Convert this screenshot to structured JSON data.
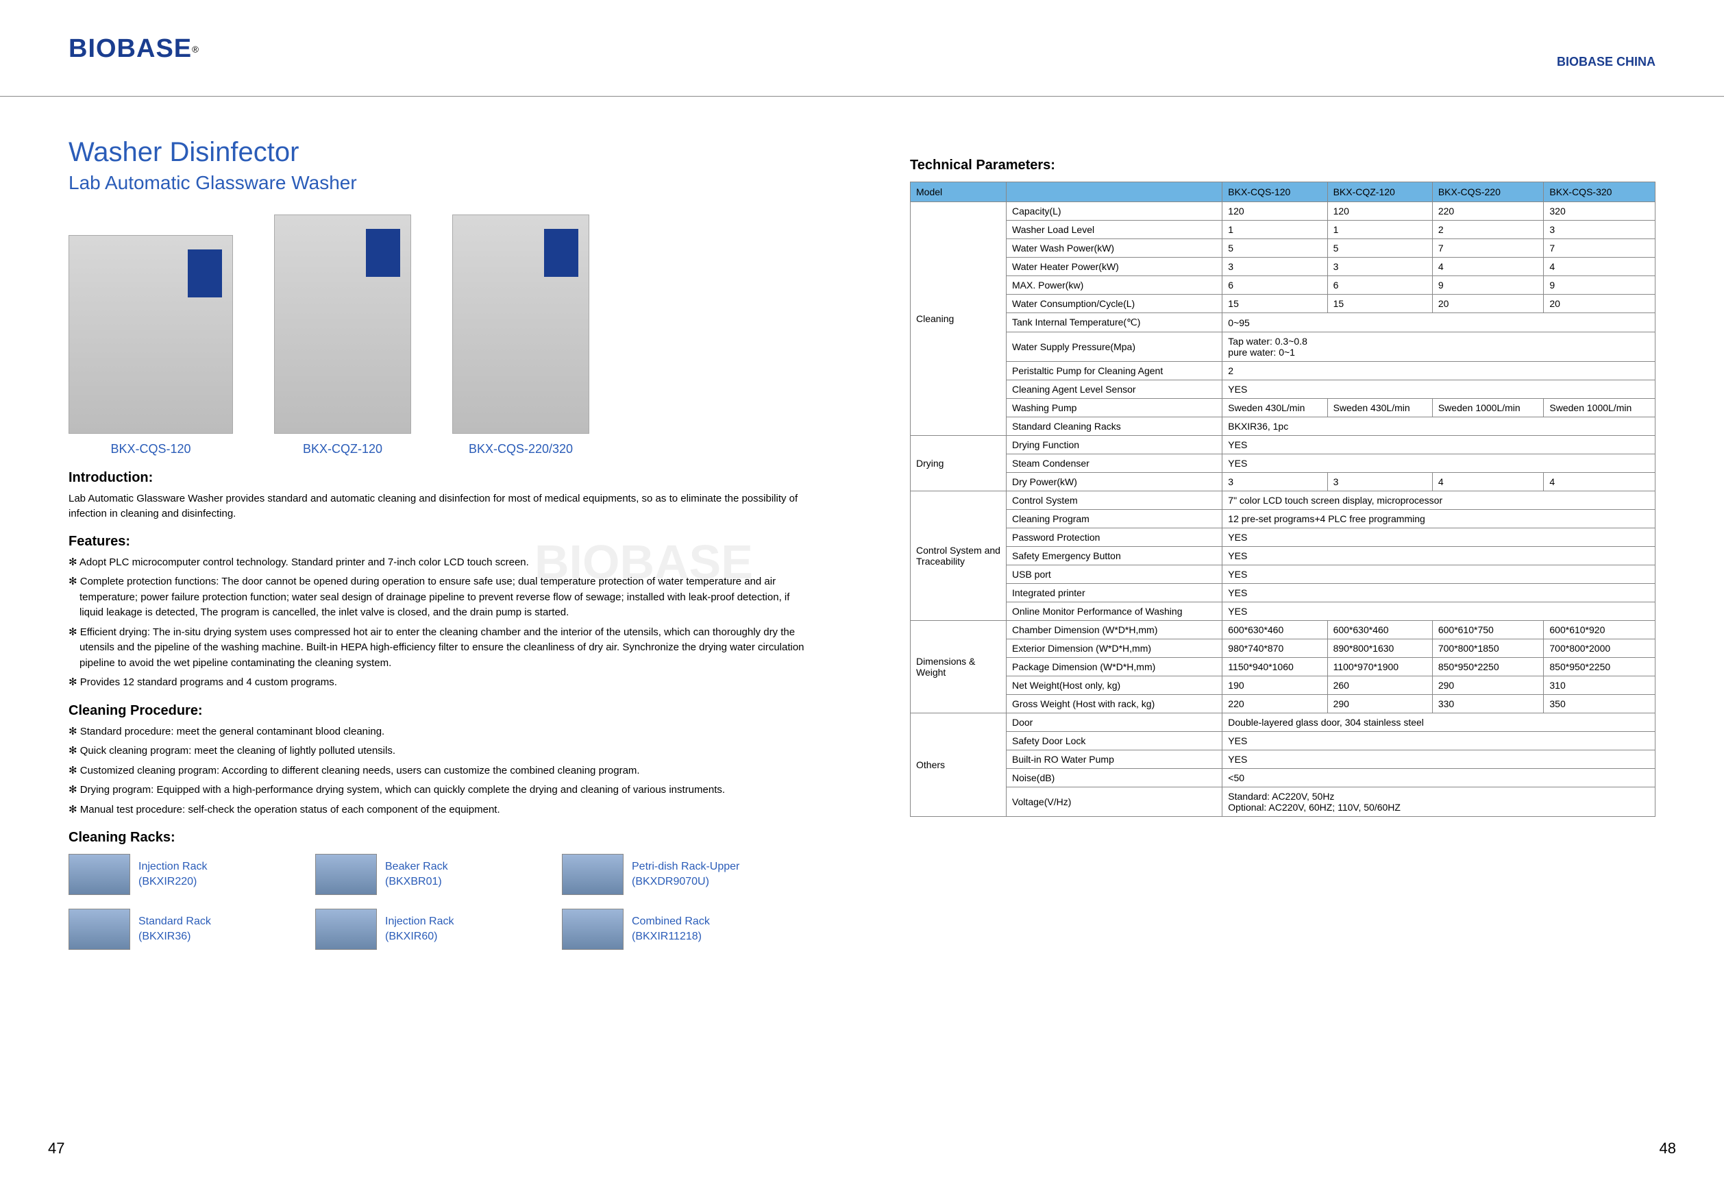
{
  "brand": "BIOBASE",
  "header_right": "BIOBASE CHINA",
  "title1": "Washer Disinfector",
  "title2": "Lab Automatic Glassware Washer",
  "products": [
    {
      "label": "BKX-CQS-120"
    },
    {
      "label": "BKX-CQZ-120"
    },
    {
      "label": "BKX-CQS-220/320"
    }
  ],
  "intro_h": "Introduction:",
  "intro": "Lab Automatic Glassware Washer provides standard and automatic cleaning and disinfection for most of medical equipments, so as to eliminate the possibility of infection in cleaning and disinfecting.",
  "features_h": "Features:",
  "features": [
    "Adopt PLC microcomputer control technology. Standard printer and 7-inch color LCD touch screen.",
    "Complete protection functions: The door cannot be opened during operation to ensure safe use; dual temperature protection of water temperature and air temperature; power failure protection function; water seal design of drainage pipeline to prevent reverse flow of sewage; installed with leak-proof detection, if liquid leakage is detected, The program is cancelled, the inlet valve is closed, and the drain pump is started.",
    "Efficient drying: The in-situ drying system uses compressed hot air to enter the cleaning chamber and the interior of the utensils, which can thoroughly dry the utensils and the pipeline of the washing machine. Built-in HEPA high-efficiency filter to ensure the cleanliness of dry air. Synchronize the drying water circulation pipeline to avoid the wet pipeline contaminating the cleaning system.",
    "Provides 12 standard programs and 4 custom programs."
  ],
  "proc_h": "Cleaning Procedure:",
  "procedures": [
    "Standard procedure: meet the general contaminant blood cleaning.",
    "Quick cleaning program: meet the cleaning of lightly polluted utensils.",
    "Customized cleaning program: According to different cleaning needs, users can customize the combined cleaning program.",
    "Drying program: Equipped with a high-performance drying system, which can quickly complete the drying and cleaning of various instruments.",
    "Manual test procedure: self-check the operation status of each component of the equipment."
  ],
  "racks_h": "Cleaning Racks:",
  "racks": [
    {
      "name": "Injection Rack",
      "code": "(BKXIR220)"
    },
    {
      "name": "Beaker Rack",
      "code": "(BKXBR01)"
    },
    {
      "name": "Petri-dish Rack-Upper",
      "code": "(BKXDR9070U)"
    },
    {
      "name": "Standard Rack",
      "code": "(BKXIR36)"
    },
    {
      "name": "Injection Rack",
      "code": "(BKXIR60)"
    },
    {
      "name": "Combined Rack",
      "code": "(BKXIR11218)"
    }
  ],
  "tech_h": "Technical Parameters:",
  "models": [
    "BKX-CQS-120",
    "BKX-CQZ-120",
    "BKX-CQS-220",
    "BKX-CQS-320"
  ],
  "groups": [
    {
      "cat": "Cleaning",
      "rows": [
        {
          "p": "Capacity(L)",
          "v": [
            "120",
            "120",
            "220",
            "320"
          ]
        },
        {
          "p": "Washer Load Level",
          "v": [
            "1",
            "1",
            "2",
            "3"
          ]
        },
        {
          "p": "Water Wash Power(kW)",
          "v": [
            "5",
            "5",
            "7",
            "7"
          ]
        },
        {
          "p": "Water Heater Power(kW)",
          "v": [
            "3",
            "3",
            "4",
            "4"
          ]
        },
        {
          "p": "MAX. Power(kw)",
          "v": [
            "6",
            "6",
            "9",
            "9"
          ]
        },
        {
          "p": "Water Consumption/Cycle(L)",
          "v": [
            "15",
            "15",
            "20",
            "20"
          ]
        },
        {
          "p": "Tank Internal Temperature(℃)",
          "span": "0~95"
        },
        {
          "p": "Water Supply Pressure(Mpa)",
          "span": "Tap water: 0.3~0.8\npure water: 0~1"
        },
        {
          "p": "Peristaltic Pump for Cleaning Agent",
          "span": "2"
        },
        {
          "p": "Cleaning Agent Level Sensor",
          "span": "YES"
        },
        {
          "p": "Washing Pump",
          "v": [
            "Sweden 430L/min",
            "Sweden 430L/min",
            "Sweden 1000L/min",
            "Sweden 1000L/min"
          ]
        },
        {
          "p": "Standard Cleaning Racks",
          "span": "BKXIR36, 1pc"
        }
      ]
    },
    {
      "cat": "Drying",
      "rows": [
        {
          "p": "Drying Function",
          "span": "YES"
        },
        {
          "p": "Steam Condenser",
          "span": "YES"
        },
        {
          "p": "Dry Power(kW)",
          "v": [
            "3",
            "3",
            "4",
            "4"
          ]
        }
      ]
    },
    {
      "cat": "Control System and Traceability",
      "rows": [
        {
          "p": "Control System",
          "span": "7\" color LCD touch screen display, microprocessor"
        },
        {
          "p": "Cleaning Program",
          "span": "12 pre-set programs+4 PLC free programming"
        },
        {
          "p": "Password Protection",
          "span": "YES"
        },
        {
          "p": "Safety Emergency Button",
          "span": "YES"
        },
        {
          "p": "USB port",
          "span": "YES"
        },
        {
          "p": "Integrated printer",
          "span": "YES"
        },
        {
          "p": "Online Monitor Performance of Washing",
          "span": "YES"
        }
      ]
    },
    {
      "cat": "Dimensions & Weight",
      "rows": [
        {
          "p": "Chamber Dimension (W*D*H,mm)",
          "v": [
            "600*630*460",
            "600*630*460",
            "600*610*750",
            "600*610*920"
          ]
        },
        {
          "p": "Exterior Dimension (W*D*H,mm)",
          "v": [
            "980*740*870",
            "890*800*1630",
            "700*800*1850",
            "700*800*2000"
          ]
        },
        {
          "p": "Package Dimension (W*D*H,mm)",
          "v": [
            "1150*940*1060",
            "1100*970*1900",
            "850*950*2250",
            "850*950*2250"
          ]
        },
        {
          "p": "Net Weight(Host only, kg)",
          "v": [
            "190",
            "260",
            "290",
            "310"
          ]
        },
        {
          "p": "Gross Weight (Host with rack, kg)",
          "v": [
            "220",
            "290",
            "330",
            "350"
          ]
        }
      ]
    },
    {
      "cat": "Others",
      "rows": [
        {
          "p": "Door",
          "span": "Double-layered glass door, 304 stainless steel"
        },
        {
          "p": "Safety Door Lock",
          "span": "YES"
        },
        {
          "p": "Built-in RO Water Pump",
          "span": "YES"
        },
        {
          "p": "Noise(dB)",
          "span": "<50"
        },
        {
          "p": "Voltage(V/Hz)",
          "span": "Standard: AC220V, 50Hz\nOptional: AC220V, 60HZ; 110V, 50/60HZ"
        }
      ]
    }
  ],
  "page_left": "47",
  "page_right": "48"
}
